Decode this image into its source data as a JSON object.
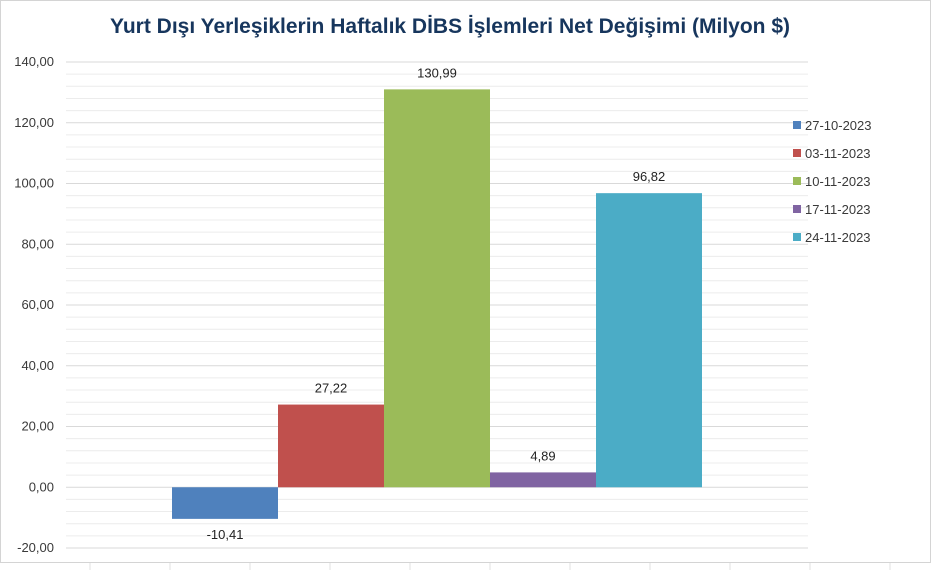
{
  "chart_data": {
    "type": "bar",
    "title": "Yurt Dışı Yerleşiklerin Haftalık DİBS İşlemleri Net Değişimi (Milyon $)",
    "xlabel": "",
    "ylabel": "",
    "ylim": [
      -20,
      140
    ],
    "ytick_values": [
      -20,
      0,
      20,
      40,
      60,
      80,
      100,
      120,
      140
    ],
    "ytick_labels": [
      "-20,00",
      "0,00",
      "20,00",
      "40,00",
      "60,00",
      "80,00",
      "100,00",
      "120,00",
      "140,00"
    ],
    "grid": true,
    "legend_position": "right",
    "series": [
      {
        "name": "27-10-2023",
        "value": -10.41,
        "label": "-10,41",
        "color": "#4f81bd"
      },
      {
        "name": "03-11-2023",
        "value": 27.22,
        "label": "27,22",
        "color": "#c0504d"
      },
      {
        "name": "10-11-2023",
        "value": 130.99,
        "label": "130,99",
        "color": "#9bbb59"
      },
      {
        "name": "17-11-2023",
        "value": 4.89,
        "label": "4,89",
        "color": "#8064a2"
      },
      {
        "name": "24-11-2023",
        "value": 96.82,
        "label": "96,82",
        "color": "#4bacc6"
      }
    ]
  }
}
